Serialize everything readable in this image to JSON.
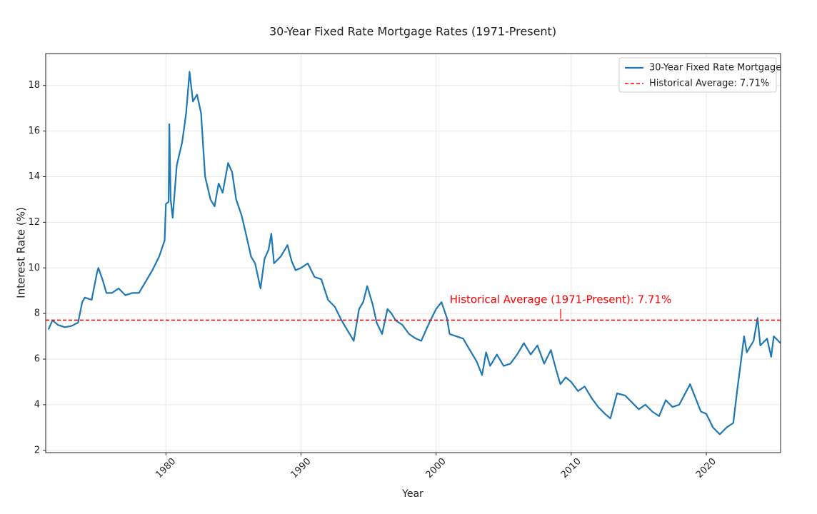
{
  "chart_data": {
    "type": "line",
    "title": "30-Year Fixed Rate Mortgage Rates (1971-Present)",
    "xlabel": "Year",
    "ylabel": "Interest Rate (%)",
    "x": [
      1971.3,
      1971.6,
      1972.0,
      1972.5,
      1973.0,
      1973.5,
      1973.8,
      1974.0,
      1974.5,
      1974.9,
      1975.0,
      1975.3,
      1975.6,
      1976.0,
      1976.5,
      1977.0,
      1977.5,
      1978.0,
      1978.5,
      1979.0,
      1979.5,
      1979.9,
      1980.0,
      1980.2,
      1980.25,
      1980.35,
      1980.5,
      1980.8,
      1981.2,
      1981.5,
      1981.75,
      1982.0,
      1982.3,
      1982.6,
      1982.9,
      1983.3,
      1983.6,
      1983.9,
      1984.2,
      1984.6,
      1984.9,
      1985.2,
      1985.6,
      1986.0,
      1986.3,
      1986.6,
      1987.0,
      1987.3,
      1987.6,
      1987.8,
      1988.0,
      1988.5,
      1989.0,
      1989.3,
      1989.6,
      1990.0,
      1990.5,
      1991.0,
      1991.5,
      1992.0,
      1992.5,
      1993.0,
      1993.5,
      1993.9,
      1994.3,
      1994.6,
      1994.9,
      1995.3,
      1995.6,
      1996.0,
      1996.4,
      1996.7,
      1997.0,
      1997.5,
      1998.0,
      1998.5,
      1998.9,
      1999.5,
      2000.0,
      2000.4,
      2000.8,
      2001.0,
      2001.5,
      2002.0,
      2002.5,
      2003.0,
      2003.4,
      2003.7,
      2004.0,
      2004.5,
      2005.0,
      2005.5,
      2006.0,
      2006.5,
      2007.0,
      2007.5,
      2008.0,
      2008.5,
      2008.9,
      2009.2,
      2009.6,
      2010.0,
      2010.5,
      2011.0,
      2011.5,
      2012.0,
      2012.5,
      2012.9,
      2013.4,
      2014.0,
      2014.5,
      2015.0,
      2015.5,
      2016.0,
      2016.5,
      2017.0,
      2017.5,
      2018.0,
      2018.8,
      2019.2,
      2019.6,
      2020.0,
      2020.5,
      2021.0,
      2021.5,
      2022.0,
      2022.3,
      2022.5,
      2022.8,
      2023.0,
      2023.5,
      2023.8,
      2024.0,
      2024.5,
      2024.8,
      2025.0,
      2025.5
    ],
    "series": [
      {
        "name": "30-Year Fixed Rate Mortgage",
        "color": "#1f77b4",
        "values": [
          7.3,
          7.7,
          7.5,
          7.4,
          7.45,
          7.6,
          8.5,
          8.7,
          8.6,
          9.8,
          10.0,
          9.5,
          8.9,
          8.9,
          9.1,
          8.8,
          8.9,
          8.9,
          9.4,
          9.9,
          10.5,
          11.2,
          12.8,
          12.9,
          16.3,
          13.0,
          12.2,
          14.5,
          15.5,
          16.8,
          18.6,
          17.3,
          17.6,
          16.8,
          14.0,
          13.0,
          12.7,
          13.7,
          13.3,
          14.6,
          14.2,
          13.0,
          12.3,
          11.3,
          10.5,
          10.2,
          9.1,
          10.4,
          10.8,
          11.5,
          10.2,
          10.5,
          11.0,
          10.3,
          9.9,
          10.0,
          10.2,
          9.6,
          9.5,
          8.6,
          8.3,
          7.7,
          7.2,
          6.8,
          8.2,
          8.5,
          9.2,
          8.4,
          7.6,
          7.1,
          8.2,
          8.0,
          7.7,
          7.5,
          7.1,
          6.9,
          6.8,
          7.6,
          8.2,
          8.5,
          7.8,
          7.1,
          7.0,
          6.9,
          6.4,
          5.9,
          5.3,
          6.3,
          5.7,
          6.2,
          5.7,
          5.8,
          6.2,
          6.7,
          6.2,
          6.6,
          5.8,
          6.4,
          5.5,
          4.9,
          5.2,
          5.0,
          4.6,
          4.8,
          4.3,
          3.9,
          3.6,
          3.4,
          4.5,
          4.4,
          4.1,
          3.8,
          4.0,
          3.7,
          3.5,
          4.2,
          3.9,
          4.0,
          4.9,
          4.3,
          3.7,
          3.6,
          3.0,
          2.7,
          3.0,
          3.2,
          4.7,
          5.6,
          7.0,
          6.3,
          6.8,
          7.8,
          6.6,
          6.9,
          6.1,
          7.0,
          6.7
        ]
      }
    ],
    "reference_lines": [
      {
        "name": "Historical Average: 7.71%",
        "value": 7.71,
        "color": "red"
      }
    ],
    "annotation": "Historical Average (1971-Present): 7.71%",
    "xlim": [
      1971.1,
      2025.5
    ],
    "ylim": [
      1.9,
      19.4
    ],
    "xticks": [
      1980,
      1990,
      2000,
      2010,
      2020
    ],
    "yticks": [
      2,
      4,
      6,
      8,
      10,
      12,
      14,
      16,
      18
    ],
    "grid": true,
    "legend": "upper right"
  }
}
